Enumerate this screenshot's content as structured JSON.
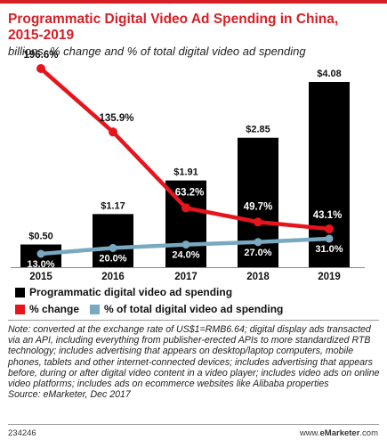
{
  "header": {
    "title": "Programmatic Digital Video Ad Spending in China, 2015-2019",
    "subtitle": "billions, % change and % of total digital video ad spending"
  },
  "colors": {
    "brand_red": "#d71f26",
    "bar": "#000000",
    "change_line": "#e8141c",
    "share_line": "#79a9c0"
  },
  "chart_data": {
    "type": "bar",
    "categories": [
      "2015",
      "2016",
      "2017",
      "2018",
      "2019"
    ],
    "series": [
      {
        "name": "Programmatic digital video ad spending",
        "type": "bar",
        "values": [
          0.5,
          1.17,
          1.91,
          2.85,
          4.08
        ],
        "labels": [
          "$0.50",
          "$1.17",
          "$1.91",
          "$2.85",
          "$4.08"
        ]
      },
      {
        "name": "% change",
        "type": "line",
        "values": [
          196.6,
          135.9,
          63.2,
          49.7,
          43.1
        ],
        "labels": [
          "196.6%",
          "135.9%",
          "63.2%",
          "49.7%",
          "43.1%"
        ]
      },
      {
        "name": "% of total digital video ad spending",
        "type": "line",
        "values": [
          13.0,
          20.0,
          24.0,
          27.0,
          31.0
        ],
        "labels": [
          "13.0%",
          "20.0%",
          "24.0%",
          "27.0%",
          "31.0%"
        ]
      }
    ],
    "title": "Programmatic Digital Video Ad Spending in China, 2015-2019",
    "ylim": [
      0,
      4.08
    ],
    "grid": false,
    "legend_placement": "bottom"
  },
  "legend": {
    "bar_label": "Programmatic digital video ad spending",
    "change_label": "% change",
    "share_label": "% of total digital video ad spending"
  },
  "note": "Note: converted at the exchange rate of US$1=RMB6.64; digital display ads transacted via an API, including everything from publisher-erected APIs to more standardized RTB technology; includes advertising that appears on desktop/laptop computers, mobile phones, tablets and other internet-connected devices; includes advertising that appears before, during or after digital video content in a video player; includes video ads on online video platforms; includes ads on ecommerce websites like Alibaba properties",
  "source": "Source: eMarketer, Dec 2017",
  "footer": {
    "id": "234246",
    "site_prefix": "www.",
    "site_brand": "eMarketer",
    "site_suffix": ".com"
  }
}
